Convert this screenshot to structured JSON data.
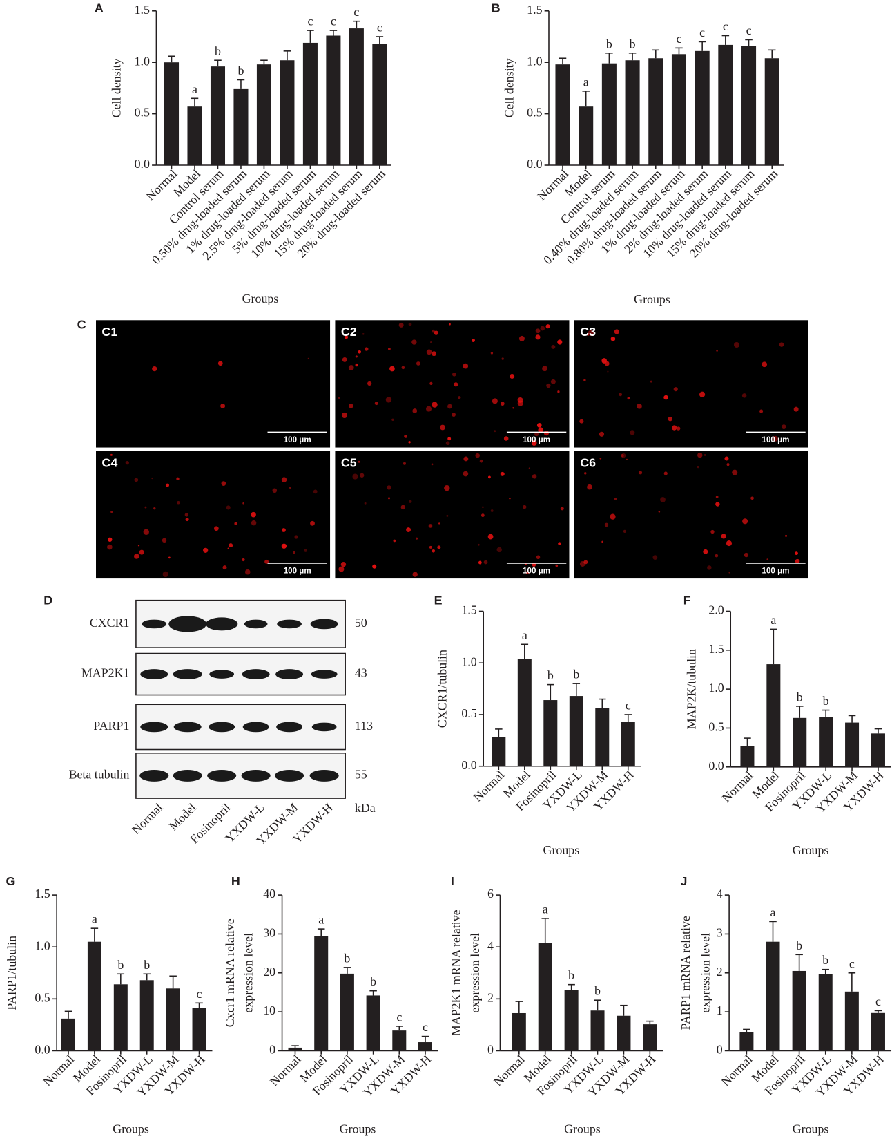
{
  "chart_data": [
    {
      "type": "bar",
      "label": "A",
      "y_label": [
        "Cell density"
      ],
      "x_label": "Groups",
      "color": "#231f20",
      "categories": [
        "Normal",
        "Model",
        "Control serum",
        "0.50% drug-loaded serum",
        "1% drug-loaded serum",
        "2.5% drug-loaded serum",
        "5% drug-loaded serum",
        "10% drug-loaded serum",
        "15% drug-loaded serum",
        "20% drug-loaded serum"
      ],
      "values": [
        1.0,
        0.57,
        0.96,
        0.74,
        0.98,
        1.02,
        1.19,
        1.26,
        1.33,
        1.18
      ],
      "errors": [
        0.06,
        0.08,
        0.06,
        0.09,
        0.04,
        0.09,
        0.12,
        0.05,
        0.07,
        0.07
      ],
      "letters": [
        null,
        "a",
        "b",
        "b",
        null,
        null,
        "c",
        "c",
        "c",
        "c"
      ],
      "ylim": [
        0,
        1.5
      ],
      "yticks": [
        {
          "value": 0,
          "label": "0.0"
        },
        0.5,
        {
          "value": 1,
          "label": "1.0"
        },
        1.5
      ]
    },
    {
      "type": "bar",
      "label": "B",
      "y_label": [
        "Cell density"
      ],
      "x_label": "Groups",
      "color": "#231f20",
      "categories": [
        "Normal",
        "Model",
        "Control serum",
        "0.40% drug-loaded serum",
        "0.80% drug-loaded serum",
        "1% drug-loaded serum",
        "2% drug-loaded serum",
        "10% drug-loaded serum",
        "15% drug-loaded serum",
        "20% drug-loaded serum"
      ],
      "values": [
        0.98,
        0.57,
        0.99,
        1.02,
        1.04,
        1.08,
        1.11,
        1.17,
        1.16,
        1.04
      ],
      "errors": [
        0.06,
        0.15,
        0.1,
        0.07,
        0.08,
        0.06,
        0.09,
        0.09,
        0.06,
        0.08
      ],
      "letters": [
        null,
        "a",
        "b",
        "b",
        null,
        "c",
        "c",
        "c",
        "c",
        null
      ],
      "ylim": [
        0,
        1.5
      ],
      "yticks": [
        {
          "value": 0,
          "label": "0.0"
        },
        0.5,
        {
          "value": 1,
          "label": "1.0"
        },
        1.5
      ]
    },
    {
      "type": "bar",
      "label": "E",
      "y_label": [
        "CXCR1/tubulin"
      ],
      "x_label": "Groups",
      "color": "#231f20",
      "categories": [
        "Normal",
        "Model",
        "Fosinopril",
        "YXDW-L",
        "YXDW-M",
        "YXDW-H"
      ],
      "values": [
        0.28,
        1.04,
        0.64,
        0.68,
        0.56,
        0.43
      ],
      "errors": [
        0.08,
        0.14,
        0.15,
        0.12,
        0.09,
        0.07
      ],
      "letters": [
        null,
        "a",
        "b",
        "b",
        null,
        "c"
      ],
      "ylim": [
        0,
        1.5
      ],
      "yticks": [
        {
          "value": 0,
          "label": "0.0"
        },
        0.5,
        {
          "value": 1,
          "label": "1.0"
        },
        1.5
      ]
    },
    {
      "type": "bar",
      "label": "F",
      "y_label": [
        "MAP2K/tubulin"
      ],
      "x_label": "Groups",
      "color": "#231f20",
      "categories": [
        "Normal",
        "Model",
        "Fosinopril",
        "YXDW-L",
        "YXDW-M",
        "YXDW-H"
      ],
      "values": [
        0.27,
        1.32,
        0.63,
        0.64,
        0.57,
        0.43
      ],
      "errors": [
        0.1,
        0.45,
        0.15,
        0.09,
        0.09,
        0.06
      ],
      "letters": [
        null,
        "a",
        "b",
        "b",
        null,
        null
      ],
      "ylim": [
        0,
        2
      ],
      "yticks": [
        {
          "value": 0,
          "label": "0.0"
        },
        0.5,
        {
          "value": 1,
          "label": "1.0"
        },
        1.5,
        {
          "value": 2,
          "label": "2.0"
        }
      ]
    },
    {
      "type": "bar",
      "label": "G",
      "y_label": [
        "PARP1/tubulin"
      ],
      "x_label": "Groups",
      "color": "#231f20",
      "categories": [
        "Normal",
        "Model",
        "Fosinopril",
        "YXDW-L",
        "YXDW-M",
        "YXDW-H"
      ],
      "values": [
        0.31,
        1.05,
        0.64,
        0.68,
        0.6,
        0.41
      ],
      "errors": [
        0.07,
        0.13,
        0.1,
        0.06,
        0.12,
        0.05
      ],
      "letters": [
        null,
        "a",
        "b",
        "b",
        null,
        "c"
      ],
      "ylim": [
        0,
        1.5
      ],
      "yticks": [
        {
          "value": 0,
          "label": "0.0"
        },
        0.5,
        {
          "value": 1,
          "label": "1.0"
        },
        1.5
      ]
    },
    {
      "type": "bar",
      "label": "H",
      "y_label": [
        "Cxcr1 mRNA relative",
        "expression level"
      ],
      "x_label": "Groups",
      "color": "#231f20",
      "categories": [
        "Normal",
        "Model",
        "Fosinopril",
        "YXDW-L",
        "YXDW-M",
        "YXDW-H"
      ],
      "values": [
        0.8,
        29.5,
        19.8,
        14.2,
        5.2,
        2.2
      ],
      "errors": [
        0.5,
        1.8,
        1.6,
        1.2,
        1.1,
        1.5
      ],
      "letters": [
        null,
        "a",
        "b",
        "b",
        "c",
        "c"
      ],
      "ylim": [
        0,
        40
      ],
      "yticks": [
        0,
        10,
        20,
        30,
        40
      ]
    },
    {
      "type": "bar",
      "label": "I",
      "y_label": [
        "MAP2K1 mRNA relative",
        "expression level"
      ],
      "x_label": "Groups",
      "color": "#231f20",
      "categories": [
        "Normal",
        "Model",
        "Fosinopril",
        "YXDW-L",
        "YXDW-M",
        "YXDW-H"
      ],
      "values": [
        1.45,
        4.15,
        2.35,
        1.55,
        1.35,
        1.02
      ],
      "errors": [
        0.45,
        0.95,
        0.2,
        0.4,
        0.4,
        0.12
      ],
      "letters": [
        null,
        "a",
        "b",
        "b",
        null,
        null
      ],
      "ylim": [
        0,
        6
      ],
      "yticks": [
        0,
        2,
        4,
        6
      ]
    },
    {
      "type": "bar",
      "label": "J",
      "y_label": [
        "PARP1 mRNA relative",
        "expression level"
      ],
      "x_label": "Groups",
      "color": "#231f20",
      "categories": [
        "Normal",
        "Model",
        "Fosinopril",
        "YXDW-L",
        "YXDW-M",
        "YXDW-H"
      ],
      "values": [
        0.47,
        2.8,
        2.05,
        1.97,
        1.52,
        0.97
      ],
      "errors": [
        0.08,
        0.52,
        0.42,
        0.12,
        0.48,
        0.06
      ],
      "letters": [
        null,
        "a",
        "b",
        "b",
        "c",
        "c"
      ],
      "ylim": [
        0,
        4
      ],
      "yticks": [
        0,
        1,
        2,
        3,
        4
      ]
    }
  ],
  "microscopy": {
    "label": "C",
    "panels": [
      {
        "label": "C1",
        "scale": "100 μm"
      },
      {
        "label": "C2",
        "scale": "100 μm"
      },
      {
        "label": "C3",
        "scale": "100 μm"
      },
      {
        "label": "C4",
        "scale": "100 μm"
      },
      {
        "label": "C5",
        "scale": "100 μm"
      },
      {
        "label": "C6",
        "scale": "100 μm"
      }
    ]
  },
  "blot": {
    "label": "D",
    "unit": "kDa",
    "lanes": [
      "Normal",
      "Model",
      "Fosinopril",
      "YXDW-L",
      "YXDW-M",
      "YXDW-H"
    ],
    "proteins": [
      {
        "name": "CXCR1",
        "kda": "50"
      },
      {
        "name": "MAP2K1",
        "kda": "43"
      },
      {
        "name": "PARP1",
        "kda": "113"
      },
      {
        "name": "Beta tubulin",
        "kda": "55"
      }
    ]
  }
}
